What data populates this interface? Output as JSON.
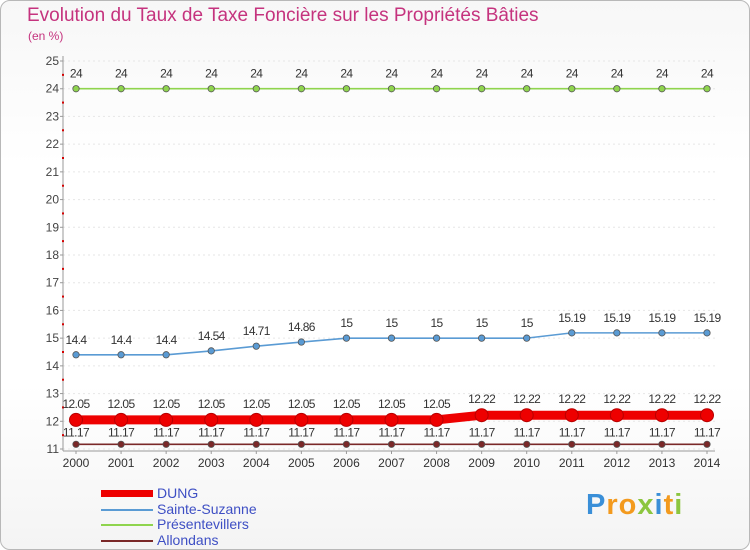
{
  "chart_data": {
    "type": "line",
    "title": "Evolution du Taux de Taxe Foncière sur les Propriétés Bâties",
    "ylabel": "(en %)",
    "xlabel": "",
    "ylim": [
      11,
      25
    ],
    "yticks": [
      11,
      12,
      13,
      14,
      15,
      16,
      17,
      18,
      19,
      20,
      21,
      22,
      23,
      24,
      25
    ],
    "categories": [
      "2000",
      "2001",
      "2002",
      "2003",
      "2004",
      "2005",
      "2006",
      "2007",
      "2008",
      "2009",
      "2010",
      "2011",
      "2012",
      "2013",
      "2014"
    ],
    "legend_position": "bottom-left",
    "series": [
      {
        "name": "DUNG",
        "color": "#ee0000",
        "values": [
          12.05,
          12.05,
          12.05,
          12.05,
          12.05,
          12.05,
          12.05,
          12.05,
          12.05,
          12.22,
          12.22,
          12.22,
          12.22,
          12.22,
          12.22
        ],
        "labels": [
          "12.05",
          "12.05",
          "12.05",
          "12.05",
          "12.05",
          "12.05",
          "12.05",
          "12.05",
          "12.05",
          "12.22",
          "12.22",
          "12.22",
          "12.22",
          "12.22",
          "12.22"
        ]
      },
      {
        "name": "Sainte-Suzanne",
        "color": "#5a9bd4",
        "values": [
          14.4,
          14.4,
          14.4,
          14.54,
          14.71,
          14.86,
          15,
          15,
          15,
          15,
          15,
          15.19,
          15.19,
          15.19,
          15.19
        ],
        "labels": [
          "14.4",
          "14.4",
          "14.4",
          "14.54",
          "14.71",
          "14.86",
          "15",
          "15",
          "15",
          "15",
          "15",
          "15.19",
          "15.19",
          "15.19",
          "15.19"
        ]
      },
      {
        "name": "Présentevillers",
        "color": "#8fd44e",
        "values": [
          24,
          24,
          24,
          24,
          24,
          24,
          24,
          24,
          24,
          24,
          24,
          24,
          24,
          24,
          24
        ],
        "labels": [
          "24",
          "24",
          "24",
          "24",
          "24",
          "24",
          "24",
          "24",
          "24",
          "24",
          "24",
          "24",
          "24",
          "24",
          "24"
        ]
      },
      {
        "name": "Allondans",
        "color": "#7a2828",
        "values": [
          11.17,
          11.17,
          11.17,
          11.17,
          11.17,
          11.17,
          11.17,
          11.17,
          11.17,
          11.17,
          11.17,
          11.17,
          11.17,
          11.17,
          11.17
        ],
        "labels": [
          "11.17",
          "11.17",
          "11.17",
          "11.17",
          "11.17",
          "11.17",
          "11.17",
          "11.17",
          "11.17",
          "11.17",
          "11.17",
          "11.17",
          "11.17",
          "11.17",
          "11.17"
        ]
      }
    ]
  },
  "logo": {
    "letters": [
      "P",
      "r",
      "o",
      "x",
      "i",
      "t",
      "i"
    ],
    "colors": [
      "#3a8fd8",
      "#f39a1e",
      "#f39a1e",
      "#8cc63f",
      "#3a8fd8",
      "#f39a1e",
      "#8cc63f"
    ]
  }
}
